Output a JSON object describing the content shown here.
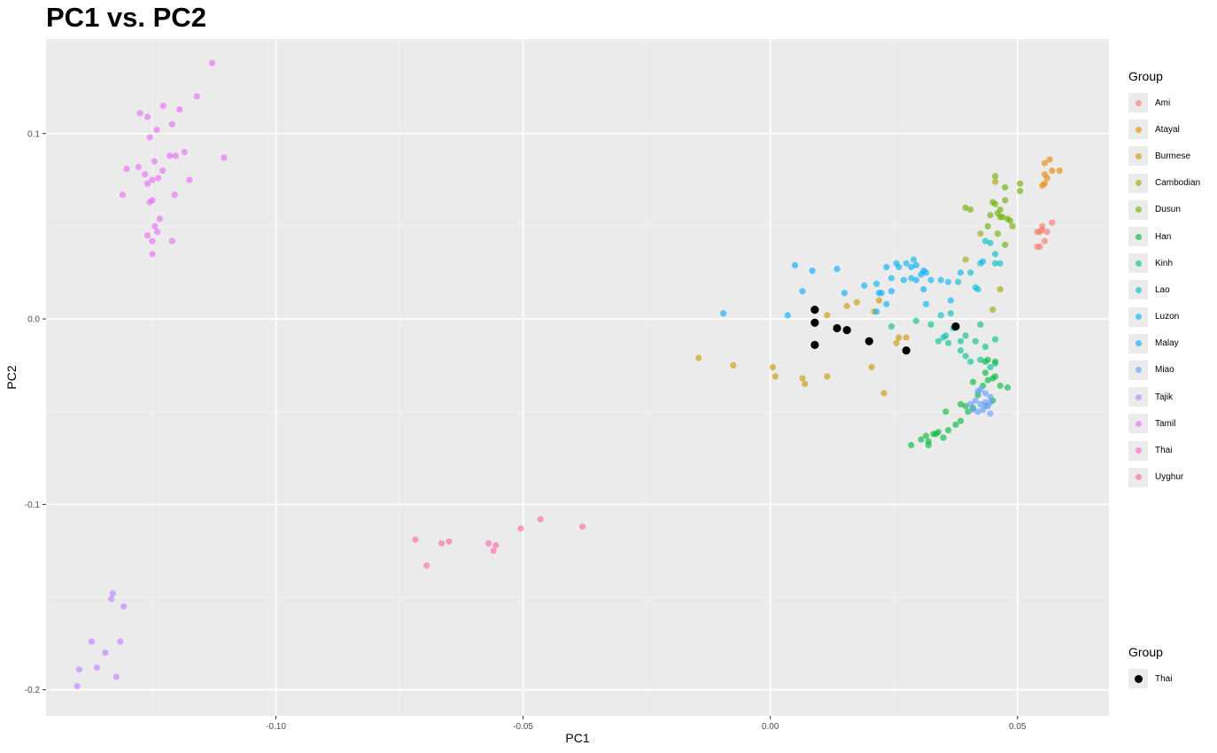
{
  "chart_data": {
    "type": "scatter",
    "title": "PC1 vs. PC2",
    "xlabel": "PC1",
    "ylabel": "PC2",
    "xlim": [
      -0.1465,
      0.0685
    ],
    "ylim": [
      -0.214,
      0.151
    ],
    "xticks": [
      -0.1,
      -0.05,
      0.0,
      0.05
    ],
    "xtick_labels": [
      "-0.10",
      "-0.05",
      "0.00",
      "0.05"
    ],
    "yticks": [
      -0.2,
      -0.1,
      0.0,
      0.1
    ],
    "ytick_labels": [
      "-0.2",
      "-0.1",
      "0.0",
      "0.1"
    ],
    "grid": true,
    "legend_position": "right",
    "legend_title": "Group",
    "legend2_title": "Group",
    "series": [
      {
        "name": "Ami",
        "color": "#F8766D",
        "points": [
          [
            0.0545,
            0.047
          ],
          [
            0.055,
            0.05
          ],
          [
            0.055,
            0.048
          ],
          [
            0.056,
            0.047
          ],
          [
            0.057,
            0.052
          ],
          [
            0.0555,
            0.042
          ],
          [
            0.0545,
            0.039
          ],
          [
            0.054,
            0.047
          ],
          [
            0.054,
            0.039
          ]
        ]
      },
      {
        "name": "Atayal",
        "color": "#E58700",
        "points": [
          [
            0.0555,
            0.084
          ],
          [
            0.0565,
            0.086
          ],
          [
            0.0555,
            0.078
          ],
          [
            0.056,
            0.076
          ],
          [
            0.057,
            0.08
          ],
          [
            0.0585,
            0.08
          ],
          [
            0.0555,
            0.073
          ],
          [
            0.055,
            0.072
          ]
        ]
      },
      {
        "name": "Burmese",
        "color": "#C99800",
        "points": [
          [
            -0.0145,
            -0.021
          ],
          [
            -0.0075,
            -0.025
          ],
          [
            0.0005,
            -0.026
          ],
          [
            0.001,
            -0.031
          ],
          [
            0.0065,
            -0.032
          ],
          [
            0.007,
            -0.035
          ],
          [
            0.0115,
            -0.031
          ],
          [
            0.0115,
            0.002
          ],
          [
            0.0155,
            0.007
          ],
          [
            0.0175,
            0.009
          ],
          [
            0.0205,
            -0.026
          ],
          [
            0.021,
            0.004
          ],
          [
            0.022,
            0.01
          ],
          [
            0.023,
            -0.04
          ],
          [
            0.0255,
            -0.013
          ],
          [
            0.026,
            -0.01
          ],
          [
            0.0275,
            -0.01
          ]
        ]
      },
      {
        "name": "Cambodian",
        "color": "#A3A500",
        "points": [
          [
            0.0395,
            0.032
          ],
          [
            0.0425,
            0.046
          ],
          [
            0.045,
            0.005
          ],
          [
            0.0465,
            0.016
          ],
          [
            0.0455,
            0.074
          ]
        ]
      },
      {
        "name": "Dusun",
        "color": "#6BB100",
        "points": [
          [
            0.0395,
            0.06
          ],
          [
            0.0405,
            0.059
          ],
          [
            0.044,
            0.05
          ],
          [
            0.0445,
            0.056
          ],
          [
            0.045,
            0.063
          ],
          [
            0.0455,
            0.062
          ],
          [
            0.0455,
            0.077
          ],
          [
            0.046,
            0.057
          ],
          [
            0.0465,
            0.055
          ],
          [
            0.0465,
            0.059
          ],
          [
            0.047,
            0.055
          ],
          [
            0.0475,
            0.064
          ],
          [
            0.0475,
            0.071
          ],
          [
            0.048,
            0.054
          ],
          [
            0.0485,
            0.053
          ],
          [
            0.049,
            0.05
          ],
          [
            0.0505,
            0.073
          ],
          [
            0.0505,
            0.069
          ],
          [
            0.046,
            0.046
          ],
          [
            0.0475,
            0.04
          ]
        ]
      },
      {
        "name": "Han",
        "color": "#00BA38",
        "points": [
          [
            0.0285,
            -0.068
          ],
          [
            0.0305,
            -0.065
          ],
          [
            0.0315,
            -0.063
          ],
          [
            0.032,
            -0.066
          ],
          [
            0.032,
            -0.068
          ],
          [
            0.033,
            -0.062
          ],
          [
            0.034,
            -0.061
          ],
          [
            0.0335,
            -0.062
          ],
          [
            0.035,
            -0.064
          ],
          [
            0.036,
            -0.06
          ],
          [
            0.0355,
            -0.05
          ],
          [
            0.0375,
            -0.057
          ],
          [
            0.0385,
            -0.055
          ],
          [
            0.0385,
            -0.046
          ],
          [
            0.0395,
            -0.047
          ],
          [
            0.04,
            -0.05
          ],
          [
            0.041,
            -0.048
          ],
          [
            0.042,
            -0.041
          ],
          [
            0.043,
            -0.036
          ],
          [
            0.0435,
            -0.029
          ],
          [
            0.044,
            -0.033
          ],
          [
            0.045,
            -0.032
          ],
          [
            0.0455,
            -0.031
          ],
          [
            0.0465,
            -0.036
          ],
          [
            0.048,
            -0.037
          ],
          [
            0.045,
            -0.044
          ],
          [
            0.044,
            -0.022
          ],
          [
            0.0435,
            -0.023
          ],
          [
            0.0455,
            -0.023
          ],
          [
            0.041,
            -0.034
          ]
        ]
      },
      {
        "name": "Kinh",
        "color": "#00C08B",
        "points": [
          [
            0.0245,
            -0.004
          ],
          [
            0.0295,
            -0.001
          ],
          [
            0.0325,
            -0.003
          ],
          [
            0.034,
            -0.012
          ],
          [
            0.036,
            -0.013
          ],
          [
            0.0355,
            -0.009
          ],
          [
            0.0375,
            -0.004
          ],
          [
            0.0385,
            -0.017
          ],
          [
            0.0395,
            -0.02
          ],
          [
            0.0405,
            -0.023
          ],
          [
            0.0415,
            -0.012
          ],
          [
            0.0425,
            -0.003
          ],
          [
            0.0435,
            -0.015
          ],
          [
            0.0455,
            -0.011
          ],
          [
            0.0455,
            -0.024
          ],
          [
            0.0445,
            -0.026
          ],
          [
            0.0425,
            -0.022
          ],
          [
            0.0395,
            -0.009
          ],
          [
            0.0385,
            -0.012
          ]
        ]
      },
      {
        "name": "Lao",
        "color": "#00BFC4",
        "points": [
          [
            0.0345,
            0.002
          ],
          [
            0.0365,
            0.003
          ],
          [
            0.037,
            -0.005
          ],
          [
            0.035,
            -0.01
          ],
          [
            0.038,
            0.02
          ],
          [
            0.0405,
            0.025
          ],
          [
            0.042,
            0.016
          ],
          [
            0.0435,
            0.042
          ],
          [
            0.0445,
            0.041
          ],
          [
            0.0455,
            0.035
          ],
          [
            0.0465,
            0.03
          ],
          [
            0.0425,
            0.03
          ],
          [
            0.0455,
            0.03
          ]
        ]
      },
      {
        "name": "Luzon",
        "color": "#00B4F0",
        "points": [
          [
            0.0215,
            0.019
          ],
          [
            0.0225,
            0.014
          ],
          [
            0.0235,
            0.008
          ],
          [
            0.0245,
            0.022
          ],
          [
            0.0255,
            0.03
          ],
          [
            0.026,
            0.028
          ],
          [
            0.027,
            0.021
          ],
          [
            0.0275,
            0.03
          ],
          [
            0.0285,
            0.022
          ],
          [
            0.029,
            0.032
          ],
          [
            0.0315,
            0.025
          ],
          [
            0.0315,
            0.008
          ],
          [
            0.0325,
            0.021
          ],
          [
            0.0345,
            0.021
          ],
          [
            0.036,
            0.02
          ],
          [
            0.0365,
            0.01
          ],
          [
            0.0385,
            0.025
          ],
          [
            0.0415,
            0.017
          ],
          [
            0.043,
            0.031
          ],
          [
            0.0215,
            0.004
          ]
        ]
      },
      {
        "name": "Malay",
        "color": "#00A9FF",
        "points": [
          [
            -0.0095,
            0.003
          ],
          [
            0.0035,
            0.002
          ],
          [
            0.005,
            0.029
          ],
          [
            0.0065,
            0.015
          ],
          [
            0.0085,
            0.026
          ],
          [
            0.0135,
            0.027
          ],
          [
            0.015,
            0.014
          ],
          [
            0.019,
            0.018
          ],
          [
            0.022,
            0.014
          ],
          [
            0.0235,
            0.028
          ],
          [
            0.0245,
            0.015
          ],
          [
            0.0285,
            0.028
          ],
          [
            0.0305,
            0.024
          ],
          [
            0.031,
            0.026
          ],
          [
            0.0295,
            0.029
          ],
          [
            0.0295,
            0.021
          ],
          [
            0.031,
            0.016
          ]
        ]
      },
      {
        "name": "Miao",
        "color": "#619CFF",
        "points": [
          [
            0.0415,
            -0.044
          ],
          [
            0.0425,
            -0.046
          ],
          [
            0.0435,
            -0.045
          ],
          [
            0.044,
            -0.047
          ],
          [
            0.0445,
            -0.042
          ],
          [
            0.0425,
            -0.038
          ],
          [
            0.0435,
            -0.04
          ],
          [
            0.0445,
            -0.045
          ],
          [
            0.042,
            -0.039
          ],
          [
            0.0435,
            -0.047
          ],
          [
            0.043,
            -0.049
          ],
          [
            0.0445,
            -0.051
          ],
          [
            0.0405,
            -0.046
          ],
          [
            0.041,
            -0.049
          ],
          [
            0.042,
            -0.05
          ]
        ]
      },
      {
        "name": "Tajik",
        "color": "#B983FF",
        "points": [
          [
            -0.1402,
            -0.198
          ],
          [
            -0.1398,
            -0.189
          ],
          [
            -0.1373,
            -0.174
          ],
          [
            -0.1362,
            -0.188
          ],
          [
            -0.1345,
            -0.18
          ],
          [
            -0.1333,
            -0.151
          ],
          [
            -0.133,
            -0.148
          ],
          [
            -0.1323,
            -0.193
          ],
          [
            -0.1315,
            -0.174
          ],
          [
            -0.1308,
            -0.155
          ]
        ]
      },
      {
        "name": "Tamil",
        "color": "#E76BF3",
        "points": [
          [
            -0.1129,
            0.138
          ],
          [
            -0.116,
            0.12
          ],
          [
            -0.1195,
            0.113
          ],
          [
            -0.1228,
            0.115
          ],
          [
            -0.1275,
            0.111
          ],
          [
            -0.126,
            0.109
          ],
          [
            -0.121,
            0.105
          ],
          [
            -0.1241,
            0.102
          ],
          [
            -0.1255,
            0.098
          ],
          [
            -0.1185,
            0.09
          ],
          [
            -0.1215,
            0.088
          ],
          [
            -0.1203,
            0.088
          ],
          [
            -0.1246,
            0.085
          ],
          [
            -0.1105,
            0.087
          ],
          [
            -0.1278,
            0.082
          ],
          [
            -0.1302,
            0.081
          ],
          [
            -0.1265,
            0.078
          ],
          [
            -0.125,
            0.075
          ],
          [
            -0.1238,
            0.076
          ],
          [
            -0.1229,
            0.08
          ],
          [
            -0.126,
            0.073
          ],
          [
            -0.1175,
            0.075
          ],
          [
            -0.131,
            0.067
          ],
          [
            -0.125,
            0.064
          ],
          [
            -0.1255,
            0.063
          ],
          [
            -0.1205,
            0.067
          ],
          [
            -0.1235,
            0.054
          ],
          [
            -0.1245,
            0.05
          ],
          [
            -0.124,
            0.047
          ],
          [
            -0.126,
            0.045
          ],
          [
            -0.125,
            0.042
          ],
          [
            -0.121,
            0.042
          ],
          [
            -0.125,
            0.035
          ]
        ]
      },
      {
        "name": "Thai",
        "color": "#FD61D1",
        "points": []
      },
      {
        "name": "Uyghur",
        "color": "#FF67A4",
        "points": [
          [
            -0.0718,
            -0.119
          ],
          [
            -0.0695,
            -0.133
          ],
          [
            -0.0665,
            -0.121
          ],
          [
            -0.065,
            -0.12
          ],
          [
            -0.057,
            -0.121
          ],
          [
            -0.056,
            -0.125
          ],
          [
            -0.0555,
            -0.122
          ],
          [
            -0.0505,
            -0.113
          ],
          [
            -0.0465,
            -0.108
          ],
          [
            -0.038,
            -0.112
          ]
        ]
      }
    ],
    "legend2_series": {
      "name": "Thai",
      "color": "#000000",
      "points": [
        [
          0.009,
          0.005
        ],
        [
          0.009,
          -0.002
        ],
        [
          0.009,
          -0.014
        ],
        [
          0.0135,
          -0.005
        ],
        [
          0.0155,
          -0.006
        ],
        [
          0.02,
          -0.012
        ],
        [
          0.0275,
          -0.017
        ],
        [
          0.0375,
          -0.004
        ]
      ]
    }
  }
}
